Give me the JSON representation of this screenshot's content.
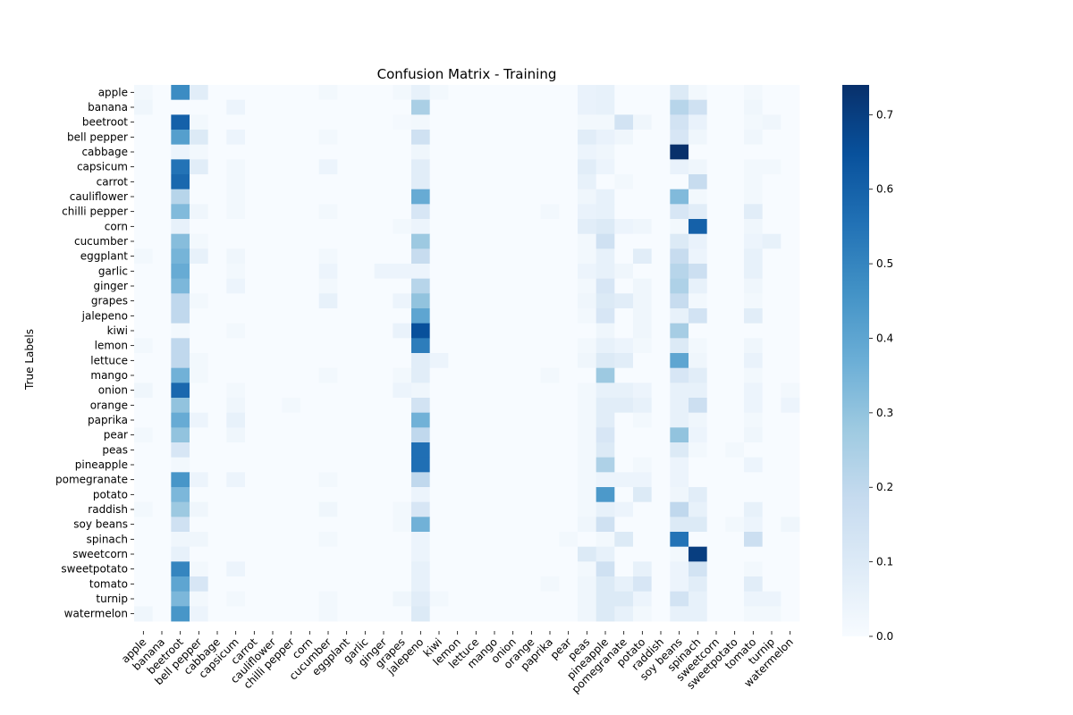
{
  "chart_data": {
    "type": "heatmap",
    "title": "Confusion Matrix - Training",
    "ylabel": "True Labels",
    "xlabel": "",
    "labels": [
      "apple",
      "banana",
      "beetroot",
      "bell pepper",
      "cabbage",
      "capsicum",
      "carrot",
      "cauliflower",
      "chilli pepper",
      "corn",
      "cucumber",
      "eggplant",
      "garlic",
      "ginger",
      "grapes",
      "jalepeno",
      "kiwi",
      "lemon",
      "lettuce",
      "mango",
      "onion",
      "orange",
      "paprika",
      "pear",
      "peas",
      "pineapple",
      "pomegranate",
      "potato",
      "raddish",
      "soy beans",
      "spinach",
      "sweetcorn",
      "sweetpotato",
      "tomato",
      "turnip",
      "watermelon"
    ],
    "colormap": "Blues",
    "colorbar": {
      "min": 0.0,
      "max": 0.74,
      "ticks": [
        "0.0",
        "0.1",
        "0.2",
        "0.3",
        "0.4",
        "0.5",
        "0.6",
        "0.7"
      ]
    },
    "values": [
      [
        0.02,
        0,
        0.48,
        0.08,
        0,
        0,
        0,
        0,
        0,
        0,
        0.02,
        0,
        0,
        0,
        0.02,
        0.06,
        0.02,
        0,
        0,
        0,
        0,
        0,
        0,
        0,
        0.05,
        0.06,
        0,
        0,
        0,
        0.1,
        0.02,
        0,
        0,
        0.02,
        0,
        0
      ],
      [
        0.03,
        0,
        0,
        0,
        0,
        0.04,
        0,
        0,
        0,
        0,
        0,
        0,
        0,
        0,
        0,
        0.25,
        0,
        0,
        0,
        0,
        0,
        0,
        0,
        0,
        0.05,
        0.06,
        0,
        0,
        0,
        0.22,
        0.15,
        0,
        0,
        0.03,
        0,
        0
      ],
      [
        0,
        0,
        0.6,
        0.02,
        0,
        0,
        0,
        0,
        0,
        0,
        0,
        0,
        0,
        0,
        0.01,
        0.02,
        0,
        0,
        0,
        0,
        0,
        0,
        0,
        0,
        0.02,
        0.02,
        0.14,
        0.03,
        0,
        0.14,
        0.05,
        0,
        0,
        0.02,
        0.03,
        0
      ],
      [
        0,
        0,
        0.42,
        0.1,
        0,
        0.04,
        0,
        0,
        0,
        0,
        0.02,
        0,
        0,
        0,
        0,
        0.15,
        0,
        0,
        0,
        0,
        0,
        0,
        0,
        0,
        0.08,
        0.05,
        0.03,
        0,
        0,
        0.12,
        0.03,
        0,
        0,
        0.03,
        0,
        0
      ],
      [
        0,
        0,
        0.04,
        0.02,
        0,
        0,
        0,
        0,
        0,
        0,
        0,
        0,
        0,
        0,
        0,
        0.03,
        0,
        0,
        0,
        0,
        0,
        0,
        0,
        0,
        0.04,
        0.03,
        0,
        0,
        0,
        0.74,
        0,
        0,
        0,
        0,
        0,
        0
      ],
      [
        0,
        0,
        0.55,
        0.08,
        0,
        0.02,
        0,
        0,
        0,
        0,
        0.04,
        0,
        0,
        0,
        0,
        0.08,
        0,
        0,
        0,
        0,
        0,
        0,
        0,
        0,
        0.08,
        0.04,
        0,
        0,
        0,
        0.05,
        0.03,
        0,
        0,
        0.02,
        0.02,
        0
      ],
      [
        0,
        0,
        0.58,
        0,
        0,
        0.02,
        0,
        0,
        0,
        0,
        0,
        0,
        0,
        0,
        0,
        0.08,
        0,
        0,
        0,
        0,
        0,
        0,
        0,
        0,
        0.06,
        0,
        0.02,
        0,
        0,
        0,
        0.18,
        0,
        0,
        0.02,
        0,
        0
      ],
      [
        0,
        0,
        0.22,
        0,
        0,
        0.02,
        0,
        0,
        0,
        0,
        0,
        0,
        0,
        0,
        0,
        0.38,
        0,
        0,
        0,
        0,
        0,
        0,
        0,
        0,
        0.03,
        0.06,
        0,
        0,
        0,
        0.33,
        0.02,
        0,
        0,
        0.02,
        0,
        0
      ],
      [
        0,
        0,
        0.33,
        0.03,
        0,
        0.02,
        0,
        0,
        0,
        0,
        0.02,
        0,
        0,
        0,
        0,
        0.12,
        0,
        0,
        0,
        0,
        0,
        0,
        0.02,
        0,
        0.05,
        0.06,
        0,
        0,
        0,
        0.12,
        0.08,
        0,
        0,
        0.08,
        0,
        0
      ],
      [
        0,
        0,
        0.06,
        0,
        0,
        0,
        0,
        0,
        0,
        0,
        0,
        0,
        0,
        0,
        0.02,
        0.04,
        0,
        0,
        0,
        0,
        0,
        0,
        0,
        0,
        0.08,
        0.1,
        0.04,
        0.03,
        0,
        0.02,
        0.6,
        0,
        0,
        0.03,
        0,
        0
      ],
      [
        0,
        0,
        0.32,
        0.02,
        0,
        0,
        0,
        0,
        0,
        0,
        0,
        0,
        0,
        0,
        0,
        0.28,
        0,
        0,
        0,
        0,
        0,
        0,
        0,
        0,
        0.02,
        0.15,
        0,
        0,
        0,
        0.1,
        0.05,
        0,
        0,
        0.04,
        0.06,
        0
      ],
      [
        0.02,
        0,
        0.35,
        0.06,
        0,
        0.03,
        0,
        0,
        0,
        0,
        0.02,
        0,
        0,
        0,
        0,
        0.18,
        0,
        0,
        0,
        0,
        0,
        0,
        0,
        0,
        0.02,
        0.06,
        0,
        0.08,
        0,
        0.18,
        0.04,
        0,
        0,
        0.06,
        0,
        0
      ],
      [
        0,
        0,
        0.38,
        0,
        0,
        0.02,
        0,
        0,
        0,
        0,
        0.04,
        0,
        0,
        0.04,
        0.04,
        0.04,
        0,
        0,
        0,
        0,
        0,
        0,
        0,
        0,
        0.04,
        0.06,
        0.03,
        0,
        0,
        0.22,
        0.16,
        0,
        0,
        0.06,
        0,
        0
      ],
      [
        0,
        0,
        0.34,
        0,
        0,
        0.04,
        0,
        0,
        0,
        0,
        0.02,
        0,
        0,
        0,
        0,
        0.22,
        0,
        0,
        0,
        0,
        0,
        0,
        0,
        0,
        0.02,
        0.12,
        0,
        0.03,
        0,
        0.24,
        0.06,
        0,
        0,
        0.03,
        0,
        0
      ],
      [
        0,
        0,
        0.2,
        0.02,
        0,
        0,
        0,
        0,
        0,
        0,
        0.06,
        0,
        0,
        0,
        0.04,
        0.3,
        0,
        0,
        0,
        0,
        0,
        0,
        0,
        0,
        0.03,
        0.1,
        0.08,
        0.03,
        0,
        0.18,
        0.02,
        0,
        0,
        0.02,
        0,
        0
      ],
      [
        0,
        0,
        0.2,
        0,
        0,
        0,
        0,
        0,
        0,
        0,
        0,
        0,
        0,
        0,
        0,
        0.4,
        0,
        0,
        0,
        0,
        0,
        0,
        0,
        0,
        0.02,
        0.12,
        0,
        0.03,
        0,
        0.06,
        0.14,
        0,
        0,
        0.08,
        0,
        0
      ],
      [
        0,
        0,
        0.02,
        0,
        0,
        0.02,
        0,
        0,
        0,
        0,
        0,
        0,
        0,
        0,
        0.05,
        0.65,
        0,
        0,
        0,
        0,
        0,
        0,
        0,
        0,
        0,
        0.03,
        0,
        0.03,
        0,
        0.26,
        0,
        0,
        0,
        0,
        0,
        0
      ],
      [
        0.02,
        0,
        0.2,
        0,
        0,
        0,
        0,
        0,
        0,
        0,
        0,
        0,
        0,
        0,
        0,
        0.52,
        0,
        0,
        0,
        0,
        0,
        0,
        0,
        0,
        0.02,
        0.06,
        0.04,
        0.02,
        0,
        0.1,
        0.02,
        0,
        0,
        0.03,
        0,
        0
      ],
      [
        0,
        0,
        0.2,
        0.02,
        0,
        0,
        0,
        0,
        0,
        0,
        0,
        0,
        0,
        0,
        0,
        0.08,
        0.04,
        0,
        0,
        0,
        0,
        0,
        0,
        0,
        0.03,
        0.1,
        0.08,
        0,
        0,
        0.4,
        0.03,
        0,
        0,
        0.05,
        0,
        0
      ],
      [
        0,
        0,
        0.36,
        0.02,
        0,
        0,
        0,
        0,
        0,
        0,
        0.02,
        0,
        0,
        0,
        0.02,
        0.08,
        0,
        0,
        0,
        0,
        0,
        0,
        0.02,
        0,
        0,
        0.28,
        0,
        0,
        0,
        0.12,
        0.08,
        0,
        0,
        0.02,
        0,
        0
      ],
      [
        0.03,
        0,
        0.58,
        0,
        0,
        0.02,
        0,
        0,
        0,
        0,
        0,
        0,
        0,
        0,
        0.04,
        0.03,
        0,
        0,
        0,
        0,
        0,
        0,
        0,
        0,
        0.02,
        0.06,
        0.06,
        0.04,
        0,
        0.06,
        0.06,
        0,
        0,
        0.04,
        0,
        0.02
      ],
      [
        0,
        0,
        0.3,
        0,
        0,
        0.03,
        0,
        0,
        0.02,
        0,
        0,
        0,
        0,
        0,
        0,
        0.14,
        0,
        0,
        0,
        0,
        0,
        0,
        0,
        0,
        0.02,
        0.08,
        0.08,
        0.06,
        0,
        0.06,
        0.16,
        0,
        0,
        0.04,
        0,
        0.04
      ],
      [
        0,
        0,
        0.38,
        0.04,
        0,
        0.06,
        0,
        0,
        0,
        0,
        0,
        0,
        0,
        0,
        0,
        0.36,
        0,
        0,
        0,
        0,
        0,
        0,
        0,
        0,
        0.02,
        0.08,
        0,
        0.02,
        0,
        0.06,
        0.03,
        0,
        0,
        0.02,
        0,
        0
      ],
      [
        0.02,
        0,
        0.3,
        0,
        0,
        0.03,
        0,
        0,
        0,
        0,
        0,
        0,
        0,
        0,
        0,
        0.2,
        0,
        0,
        0,
        0,
        0,
        0,
        0,
        0,
        0.02,
        0.12,
        0,
        0,
        0,
        0.3,
        0.04,
        0,
        0,
        0.03,
        0,
        0
      ],
      [
        0,
        0,
        0.12,
        0,
        0,
        0,
        0,
        0,
        0,
        0,
        0,
        0,
        0,
        0,
        0,
        0.56,
        0,
        0,
        0,
        0,
        0,
        0,
        0,
        0,
        0.02,
        0.1,
        0,
        0,
        0,
        0.1,
        0.02,
        0,
        0.02,
        0,
        0,
        0
      ],
      [
        0,
        0,
        0.02,
        0,
        0,
        0,
        0,
        0,
        0,
        0,
        0,
        0,
        0,
        0,
        0,
        0.56,
        0,
        0,
        0,
        0,
        0,
        0,
        0,
        0,
        0.02,
        0.24,
        0,
        0.02,
        0,
        0.04,
        0,
        0,
        0,
        0.04,
        0,
        0
      ],
      [
        0,
        0,
        0.45,
        0.04,
        0,
        0.04,
        0,
        0,
        0,
        0,
        0.02,
        0,
        0,
        0,
        0,
        0.2,
        0,
        0,
        0,
        0,
        0,
        0,
        0,
        0,
        0.02,
        0.04,
        0.04,
        0.04,
        0,
        0.04,
        0,
        0,
        0,
        0,
        0,
        0
      ],
      [
        0,
        0,
        0.34,
        0,
        0,
        0,
        0,
        0,
        0,
        0,
        0,
        0,
        0,
        0,
        0,
        0.04,
        0,
        0,
        0,
        0,
        0,
        0,
        0,
        0,
        0.02,
        0.44,
        0,
        0.1,
        0,
        0.03,
        0.08,
        0,
        0,
        0,
        0,
        0
      ],
      [
        0.02,
        0,
        0.28,
        0.03,
        0,
        0,
        0,
        0,
        0,
        0,
        0.03,
        0,
        0,
        0,
        0.02,
        0.12,
        0,
        0,
        0,
        0,
        0,
        0,
        0,
        0,
        0.02,
        0.06,
        0.04,
        0,
        0,
        0.2,
        0.06,
        0,
        0,
        0.06,
        0,
        0
      ],
      [
        0,
        0,
        0.15,
        0,
        0,
        0,
        0,
        0,
        0,
        0,
        0,
        0,
        0,
        0,
        0.02,
        0.36,
        0,
        0,
        0,
        0,
        0,
        0,
        0,
        0,
        0.03,
        0.15,
        0,
        0,
        0,
        0.1,
        0.1,
        0,
        0.02,
        0.04,
        0,
        0.03
      ],
      [
        0,
        0,
        0.03,
        0.03,
        0,
        0,
        0,
        0,
        0,
        0,
        0.02,
        0,
        0,
        0,
        0,
        0.04,
        0,
        0,
        0,
        0,
        0,
        0,
        0,
        0.02,
        0,
        0.02,
        0.1,
        0,
        0,
        0.55,
        0,
        0,
        0,
        0.16,
        0,
        0
      ],
      [
        0,
        0,
        0.06,
        0,
        0,
        0,
        0,
        0,
        0,
        0,
        0,
        0,
        0,
        0,
        0,
        0.04,
        0,
        0,
        0,
        0,
        0,
        0,
        0,
        0,
        0.1,
        0.06,
        0,
        0,
        0,
        0.02,
        0.7,
        0,
        0,
        0,
        0,
        0
      ],
      [
        0,
        0,
        0.5,
        0.02,
        0,
        0.04,
        0,
        0,
        0,
        0,
        0,
        0,
        0,
        0,
        0,
        0.06,
        0,
        0,
        0,
        0,
        0,
        0,
        0,
        0,
        0.02,
        0.15,
        0,
        0.06,
        0,
        0.04,
        0.14,
        0,
        0,
        0.02,
        0,
        0
      ],
      [
        0,
        0,
        0.4,
        0.12,
        0,
        0,
        0,
        0,
        0,
        0,
        0,
        0,
        0,
        0,
        0,
        0.06,
        0,
        0,
        0,
        0,
        0,
        0,
        0.02,
        0,
        0.03,
        0.1,
        0.06,
        0.12,
        0,
        0.04,
        0.08,
        0,
        0,
        0.08,
        0,
        0
      ],
      [
        0,
        0,
        0.34,
        0.02,
        0,
        0.02,
        0,
        0,
        0,
        0,
        0.02,
        0,
        0,
        0,
        0.03,
        0.08,
        0.02,
        0,
        0,
        0,
        0,
        0,
        0,
        0,
        0.03,
        0.1,
        0.1,
        0.04,
        0,
        0.14,
        0.06,
        0,
        0,
        0.04,
        0.04,
        0
      ],
      [
        0.03,
        0,
        0.45,
        0.04,
        0,
        0,
        0,
        0,
        0,
        0,
        0.02,
        0,
        0,
        0,
        0,
        0.1,
        0,
        0,
        0,
        0,
        0,
        0,
        0,
        0,
        0.03,
        0.1,
        0.06,
        0.02,
        0,
        0.06,
        0.06,
        0,
        0,
        0.02,
        0.02,
        0
      ]
    ]
  }
}
